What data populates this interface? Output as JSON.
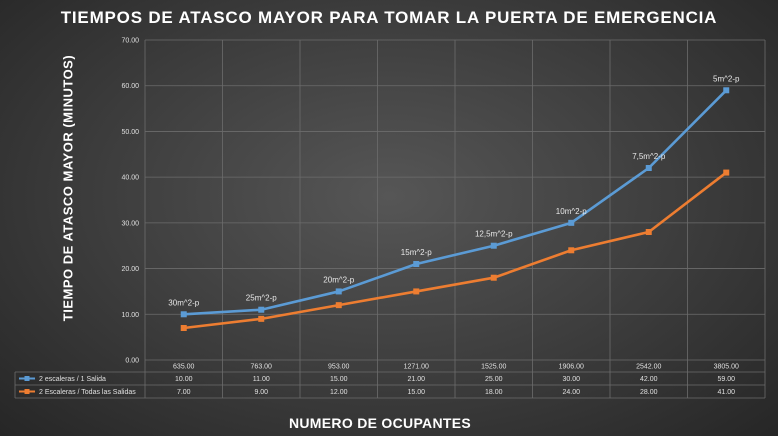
{
  "chart_data": {
    "type": "line",
    "title": "TIEMPOS DE ATASCO MAYOR PARA TOMAR LA PUERTA DE EMERGENCIA",
    "xlabel": "NUMERO DE OCUPANTES",
    "ylabel": "TIEMPO DE ATASCO MAYOR  (MINUTOS)",
    "ylim": [
      0,
      70
    ],
    "yticks": [
      "0.00",
      "10.00",
      "20.00",
      "30.00",
      "40.00",
      "50.00",
      "60.00",
      "70.00"
    ],
    "grid": true,
    "legend": "data-table",
    "categories": [
      "635.00",
      "763.00",
      "953.00",
      "1271.00",
      "1525.00",
      "1906.00",
      "2542.00",
      "3805.00"
    ],
    "series": [
      {
        "name": "2 escaleras / 1 Salida",
        "color": "#5b9bd5",
        "values": [
          10,
          11,
          15,
          21,
          25,
          30,
          42,
          59
        ],
        "value_labels": [
          "10.00",
          "11.00",
          "15.00",
          "21.00",
          "25.00",
          "30.00",
          "42.00",
          "59.00"
        ],
        "point_labels": [
          "30m^2-p",
          "25m^2-p",
          "20m^2-p",
          "15m^2-p",
          "12,5m^2-p",
          "10m^2-p",
          "7,5m^2-p",
          "5m^2-p"
        ]
      },
      {
        "name": "2 Escaleras / Todas las Salidas",
        "color": "#ed7d31",
        "values": [
          7,
          9,
          12,
          15,
          18,
          24,
          28,
          41
        ],
        "value_labels": [
          "7.00",
          "9.00",
          "12.00",
          "15.00",
          "18.00",
          "24.00",
          "28.00",
          "41.00"
        ]
      }
    ]
  }
}
